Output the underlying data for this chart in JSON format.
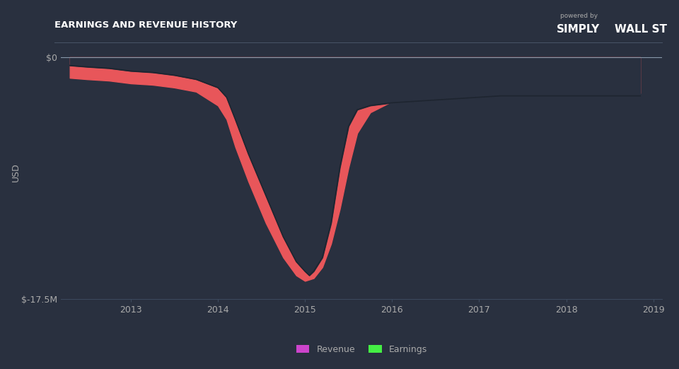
{
  "title": "EARNINGS AND REVENUE HISTORY",
  "ylabel": "USD",
  "background_color": "#29303f",
  "plot_bg_color": "#29303f",
  "fill_color": "#e8565a",
  "legend_revenue_color": "#cc44cc",
  "legend_earnings_color": "#44ee44",
  "ylim": [
    -17500000,
    800000
  ],
  "yticks": [
    0,
    -17500000
  ],
  "ytick_labels": [
    "$0",
    "$-17.5M"
  ],
  "xtick_labels": [
    "2013",
    "2014",
    "2015",
    "2016",
    "2017",
    "2018",
    "2019"
  ],
  "title_color": "#ffffff",
  "tick_color": "#aaaaaa",
  "grid_color": "#3d4a5e",
  "separator_color": "#4a5568",
  "zero_line_color": "#8899aa",
  "revenue_x": [
    2012.3,
    2012.5,
    2012.75,
    2013.0,
    2013.25,
    2013.5,
    2013.75,
    2014.0,
    2014.1,
    2014.2,
    2014.35,
    2014.55,
    2014.75,
    2014.9,
    2015.0,
    2015.1,
    2015.2,
    2015.3,
    2015.4,
    2015.5,
    2015.6,
    2015.75,
    2016.0,
    2016.25,
    2016.5,
    2016.75,
    2017.0,
    2017.25,
    2017.5,
    2017.75,
    2018.0,
    2018.25,
    2018.5,
    2018.75,
    2018.85
  ],
  "revenue_y": [
    -1500000,
    -1600000,
    -1700000,
    -1900000,
    -2000000,
    -2200000,
    -2500000,
    -3500000,
    -4500000,
    -6500000,
    -9000000,
    -12000000,
    -14500000,
    -15800000,
    -16200000,
    -16000000,
    -15200000,
    -13500000,
    -11000000,
    -8000000,
    -5500000,
    -4000000,
    -3200000,
    -3000000,
    -2900000,
    -2800000,
    -2700000,
    -2600000,
    -2600000,
    -2600000,
    -2600000,
    -2600000,
    -2600000,
    -2600000,
    -2600000
  ],
  "earnings_x": [
    2012.3,
    2012.5,
    2012.75,
    2013.0,
    2013.25,
    2013.5,
    2013.75,
    2014.0,
    2014.1,
    2014.2,
    2014.35,
    2014.55,
    2014.75,
    2014.9,
    2015.0,
    2015.05,
    2015.1,
    2015.2,
    2015.3,
    2015.35,
    2015.4,
    2015.5,
    2015.6,
    2015.75,
    2016.0,
    2016.25,
    2016.5,
    2016.75,
    2017.0,
    2017.25,
    2017.5,
    2017.75,
    2018.0,
    2018.25,
    2018.5,
    2018.75,
    2018.85
  ],
  "earnings_y": [
    -600000,
    -700000,
    -800000,
    -1000000,
    -1100000,
    -1300000,
    -1600000,
    -2200000,
    -2900000,
    -4500000,
    -7000000,
    -10000000,
    -13000000,
    -14800000,
    -15500000,
    -15800000,
    -15500000,
    -14500000,
    -12000000,
    -10000000,
    -8000000,
    -5000000,
    -3800000,
    -3500000,
    -3300000,
    -3200000,
    -3100000,
    -3000000,
    -2900000,
    -2800000,
    -2800000,
    -2800000,
    -2800000,
    -2800000,
    -2800000,
    -2800000,
    -2800000
  ]
}
